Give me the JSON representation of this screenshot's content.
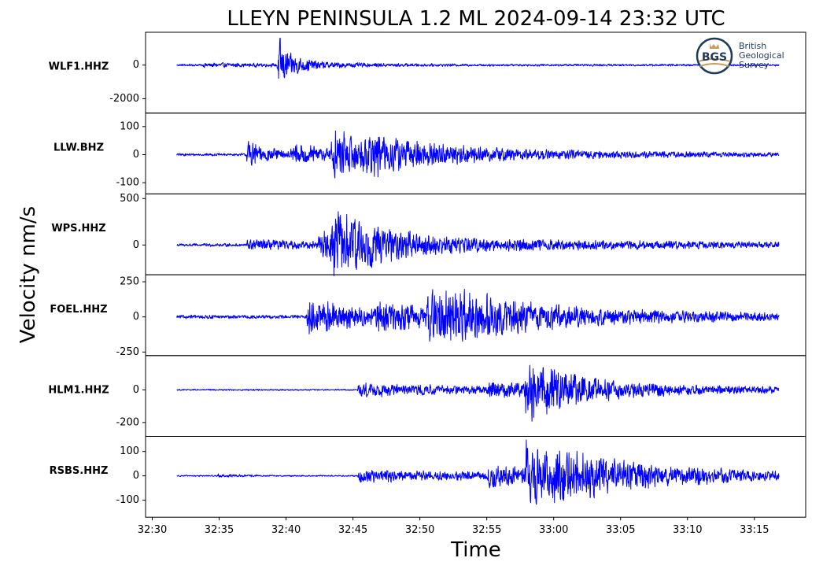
{
  "chart_data": {
    "type": "line",
    "title": "LLEYN PENINSULA 1.2 ML   2024-09-14 23:32 UTC",
    "xlabel": "Time",
    "ylabel": "Velocity nm/s",
    "x_ticks": [
      "32:30",
      "32:35",
      "32:40",
      "32:45",
      "32:50",
      "32:55",
      "33:00",
      "33:05",
      "33:10",
      "33:15"
    ],
    "x_range_seconds": [
      -3,
      293
    ],
    "trace_range_seconds": [
      11,
      281
    ],
    "grid": false,
    "line_color": "#0000ff",
    "logo": {
      "mark": "BGS",
      "line1": "British",
      "line2": "Geological",
      "line3": "Survey"
    },
    "panels": [
      {
        "station": "WLF1.HHZ",
        "yticks": [
          "0",
          "-2000"
        ],
        "ytick_values": [
          0,
          -2000
        ],
        "ylim": [
          -2850,
          1950
        ],
        "noise": 70,
        "events": [
          {
            "t": 22.5,
            "amp": 120,
            "decay": 30
          },
          {
            "t": 55.8,
            "amp": 2200,
            "decay": 5
          },
          {
            "t": 63,
            "amp": 230,
            "decay": 25
          }
        ]
      },
      {
        "station": "LLW.BHZ",
        "yticks": [
          "100",
          "0",
          "-100"
        ],
        "ytick_values": [
          100,
          0,
          -100
        ],
        "ylim": [
          -140,
          148
        ],
        "noise": 5,
        "events": [
          {
            "t": 42,
            "amp": 55,
            "decay": 12
          },
          {
            "t": 62,
            "amp": 35,
            "decay": 30
          },
          {
            "t": 80,
            "amp": 85,
            "decay": 28
          },
          {
            "t": 96,
            "amp": 30,
            "decay": 90
          }
        ]
      },
      {
        "station": "WPS.HHZ",
        "yticks": [
          "500",
          "0"
        ],
        "ytick_values": [
          500,
          0
        ],
        "ylim": [
          -320,
          550
        ],
        "noise": 18,
        "events": [
          {
            "t": 42,
            "amp": 55,
            "decay": 45
          },
          {
            "t": 74,
            "amp": 140,
            "decay": 22
          },
          {
            "t": 80,
            "amp": 380,
            "decay": 14
          },
          {
            "t": 90,
            "amp": 90,
            "decay": 120
          }
        ]
      },
      {
        "station": "FOEL.HHZ",
        "yticks": [
          "250",
          "0",
          "-250"
        ],
        "ytick_values": [
          250,
          0,
          -250
        ],
        "ylim": [
          -275,
          300
        ],
        "noise": 14,
        "events": [
          {
            "t": 69,
            "amp": 140,
            "decay": 30
          },
          {
            "t": 100,
            "amp": 70,
            "decay": 50
          },
          {
            "t": 123,
            "amp": 170,
            "decay": 30
          },
          {
            "t": 130,
            "amp": 60,
            "decay": 120
          }
        ]
      },
      {
        "station": "HLM1.HHZ",
        "yticks": [
          "0",
          "-200"
        ],
        "ytick_values": [
          0,
          -200
        ],
        "ylim": [
          -285,
          210
        ],
        "noise": 5,
        "events": [
          {
            "t": 92,
            "amp": 45,
            "decay": 70
          },
          {
            "t": 150,
            "amp": 45,
            "decay": 30
          },
          {
            "t": 167,
            "amp": 190,
            "decay": 18
          },
          {
            "t": 175,
            "amp": 35,
            "decay": 120
          }
        ]
      },
      {
        "station": "RSBS.HHZ",
        "yticks": [
          "100",
          "0",
          "-100"
        ],
        "ytick_values": [
          100,
          0,
          -100
        ],
        "ylim": [
          -170,
          162
        ],
        "noise": 3,
        "events": [
          {
            "t": 29,
            "amp": 8,
            "decay": 10
          },
          {
            "t": 92,
            "amp": 30,
            "decay": 80
          },
          {
            "t": 150,
            "amp": 40,
            "decay": 40
          },
          {
            "t": 167,
            "amp": 115,
            "decay": 35
          },
          {
            "t": 180,
            "amp": 30,
            "decay": 100
          }
        ]
      }
    ]
  }
}
